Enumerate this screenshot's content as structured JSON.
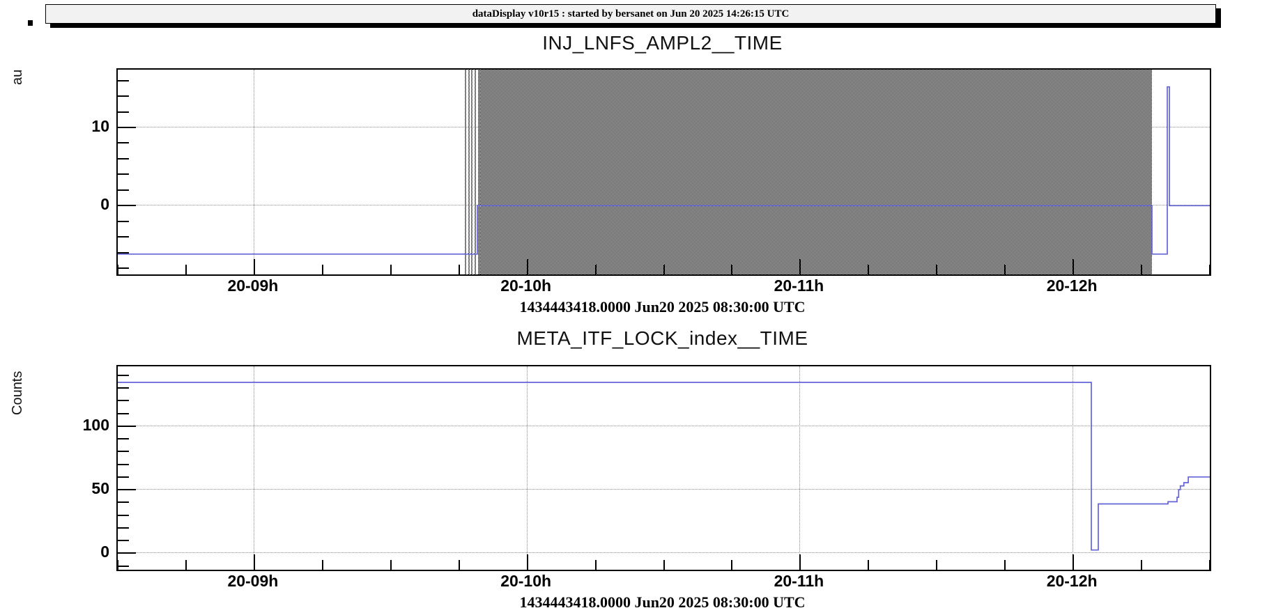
{
  "title_bar": {
    "text": "dataDisplay v10r15 : started by bersanet on Jun 20 2025 14:26:15 UTC"
  },
  "colors": {
    "line": "#6363d8",
    "grid": "#8c8c8c",
    "axis": "#000000",
    "titlebar_bg": "#f2f2f2"
  },
  "chart_data": [
    {
      "type": "line",
      "title": "INJ_LNFS_AMPL2__TIME",
      "ylabel": "au",
      "xlabel": "",
      "timestamp": "1434443418.0000 Jun20 2025 08:30:00 UTC",
      "x_range_hours": [
        8.5,
        12.5
      ],
      "x_ticks": [
        {
          "t": 9,
          "label": "20-09h"
        },
        {
          "t": 10,
          "label": "20-10h"
        },
        {
          "t": 11,
          "label": "20-11h"
        },
        {
          "t": 12,
          "label": "20-12h"
        }
      ],
      "x_minor_step": 0.25,
      "y_range": [
        -8.8,
        17.4
      ],
      "y_ticks": [
        {
          "v": 0,
          "label": "0"
        },
        {
          "v": 10,
          "label": "10"
        }
      ],
      "y_minor_step": 2,
      "grid": true,
      "series": [
        [
          8.5,
          -6.2
        ],
        [
          9.8172,
          -6.2
        ],
        [
          9.8172,
          0
        ],
        [
          12.2881,
          0
        ],
        [
          12.2881,
          -6.2
        ],
        [
          12.3443,
          -6.2
        ],
        [
          12.3443,
          15.2
        ],
        [
          12.352,
          15.2
        ],
        [
          12.352,
          0
        ],
        [
          12.5,
          0
        ]
      ],
      "saturation_band": {
        "meaning": "signal oscillating full scale, rendered as dense hatch",
        "start": 9.8274,
        "end": 12.2881,
        "stripes": [
          [
            9.7713,
            9.7764
          ],
          [
            9.7828,
            9.7879
          ],
          [
            9.7943,
            9.7994
          ],
          [
            9.8057,
            9.8121
          ],
          [
            9.8185,
            9.8274
          ]
        ]
      }
    },
    {
      "type": "line",
      "title": "META_ITF_LOCK_index__TIME",
      "ylabel": "Counts",
      "xlabel": "",
      "timestamp": "1434443418.0000 Jun20 2025 08:30:00 UTC",
      "x_range_hours": [
        8.5,
        12.5
      ],
      "x_ticks": [
        {
          "t": 9,
          "label": "20-09h"
        },
        {
          "t": 10,
          "label": "20-10h"
        },
        {
          "t": 11,
          "label": "20-11h"
        },
        {
          "t": 12,
          "label": "20-12h"
        }
      ],
      "x_minor_step": 0.25,
      "y_range": [
        -13,
        147
      ],
      "y_ticks": [
        {
          "v": 0,
          "label": "0"
        },
        {
          "v": 50,
          "label": "50"
        },
        {
          "v": 100,
          "label": "100"
        }
      ],
      "y_minor_step": 10,
      "grid": true,
      "series": [
        [
          8.5,
          134.4
        ],
        [
          12.0661,
          134.4
        ],
        [
          12.0661,
          2.5
        ],
        [
          12.0916,
          2.5
        ],
        [
          12.0916,
          38.8
        ],
        [
          12.3468,
          38.8
        ],
        [
          12.3468,
          40.5
        ],
        [
          12.38,
          40.5
        ],
        [
          12.38,
          44
        ],
        [
          12.386,
          44
        ],
        [
          12.386,
          50
        ],
        [
          12.392,
          50
        ],
        [
          12.392,
          53
        ],
        [
          12.405,
          53
        ],
        [
          12.405,
          55.5
        ],
        [
          12.421,
          55.5
        ],
        [
          12.421,
          60
        ],
        [
          12.5,
          60
        ]
      ]
    }
  ]
}
